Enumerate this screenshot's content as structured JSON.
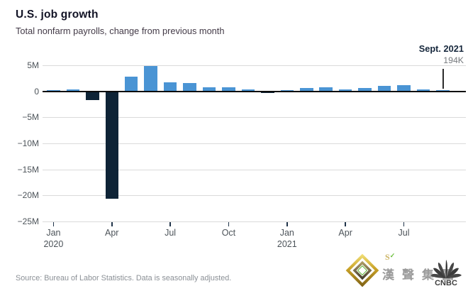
{
  "header": {
    "title": "U.S. job growth",
    "subtitle": "Total nonfarm payrolls, change from previous month"
  },
  "annotation": {
    "label": "Sept. 2021",
    "value": "194K"
  },
  "chart_data": {
    "type": "bar",
    "title": "U.S. job growth",
    "subtitle": "Total nonfarm payrolls, change from previous month",
    "unit": "millions of jobs, change from previous month",
    "ylim": [
      -25,
      5
    ],
    "grid": true,
    "categories": [
      "Jan 2020",
      "Feb 2020",
      "Mar 2020",
      "Apr 2020",
      "May 2020",
      "Jun 2020",
      "Jul 2020",
      "Aug 2020",
      "Sep 2020",
      "Oct 2020",
      "Nov 2020",
      "Dec 2020",
      "Jan 2021",
      "Feb 2021",
      "Mar 2021",
      "Apr 2021",
      "May 2021",
      "Jun 2021",
      "Jul 2021",
      "Aug 2021",
      "Sep 2021"
    ],
    "values": [
      0.2,
      0.3,
      -1.7,
      -20.7,
      2.8,
      4.8,
      1.7,
      1.6,
      0.7,
      0.7,
      0.3,
      -0.3,
      0.2,
      0.6,
      0.8,
      0.3,
      0.6,
      1.0,
      1.1,
      0.4,
      0.194
    ],
    "yticks": [
      {
        "value": 5,
        "label": "5M"
      },
      {
        "value": 0,
        "label": "0"
      },
      {
        "value": -5,
        "label": "−5M"
      },
      {
        "value": -10,
        "label": "−10M"
      },
      {
        "value": -15,
        "label": "−15M"
      },
      {
        "value": -20,
        "label": "−20M"
      },
      {
        "value": -25,
        "label": "−25M"
      }
    ],
    "xticks": [
      {
        "index": 0,
        "label": "Jan",
        "sublabel": "2020"
      },
      {
        "index": 3,
        "label": "Apr",
        "sublabel": ""
      },
      {
        "index": 6,
        "label": "Jul",
        "sublabel": ""
      },
      {
        "index": 9,
        "label": "Oct",
        "sublabel": ""
      },
      {
        "index": 12,
        "label": "Jan",
        "sublabel": "2021"
      },
      {
        "index": 15,
        "label": "Apr",
        "sublabel": ""
      },
      {
        "index": 18,
        "label": "Jul",
        "sublabel": ""
      }
    ],
    "colors": {
      "positive": "#4a94d4",
      "negative": "#0e2336",
      "zero_line": "#0a0a0a",
      "gridline": "#dadada"
    },
    "annotation": {
      "label": "Sept. 2021",
      "value": "194K",
      "target_category": "Sep 2021"
    },
    "legend_position": "none"
  },
  "footer": {
    "source": "Source: Bureau of Labor Statistics. Data is seasonally adjusted."
  },
  "watermark": {
    "brand_mark": "S",
    "cjk_text": "漢聲集團",
    "cnbc_label": "CNBC"
  }
}
